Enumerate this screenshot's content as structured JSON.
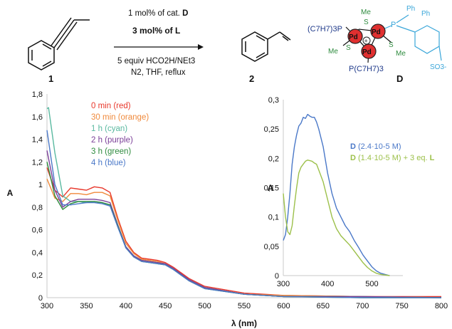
{
  "scheme": {
    "reagent_line1_pre": "1 mol% of cat. ",
    "reagent_line1_bold": "D",
    "reagent_line2": "3 mol% of L",
    "reagent_line3": "5 equiv HCO2H/NEt3",
    "reagent_line4": "N2, THF, reflux",
    "reactant_label": "1",
    "product_label": "2",
    "catalyst_label": "D",
    "catalyst_text": {
      "pr3_left": "(C7H7)3P",
      "pr3_bottom": "P(C7H7)3",
      "me_top": "Me",
      "s_top": "S",
      "s_left": "S",
      "s_right": "S",
      "me_left": "Me",
      "me_right": "Me",
      "pd": "Pd",
      "charge": "+",
      "p_ligand": "P",
      "ph1": "Ph",
      "ph2": "Ph",
      "so3": "SO3-"
    }
  },
  "colors": {
    "red": "#e8372b",
    "orange": "#f08a3c",
    "cyan": "#5ab9a0",
    "purple": "#7b3f98",
    "green": "#2e8b3e",
    "blue": "#4a78c8",
    "inset_green": "#9cc04a",
    "axis": "#c9c9c9",
    "catalyst_blue": "#1f3a8a",
    "ligand_cyan": "#3aa6d9",
    "sphere_red": "#e03030",
    "sphere_dark": "#222222"
  },
  "chart_data": [
    {
      "type": "line",
      "xlabel": "λ (nm)",
      "ylabel": "A",
      "xlim": [
        300,
        800
      ],
      "ylim": [
        0,
        1.8
      ],
      "xticks": [
        "300",
        "350",
        "400",
        "450",
        "500",
        "550",
        "600",
        "650",
        "700",
        "750",
        "800"
      ],
      "yticks": [
        "0",
        "0,2",
        "0,4",
        "0,6",
        "0,8",
        "1",
        "1,2",
        "1,4",
        "1,6",
        "1,8"
      ],
      "grid": false,
      "legend_position": "upper-left",
      "series": [
        {
          "name": "0 min (red)",
          "color": "red",
          "x": [
            300,
            310,
            320,
            330,
            340,
            350,
            360,
            370,
            380,
            390,
            400,
            410,
            420,
            430,
            440,
            450,
            460,
            480,
            500,
            550,
            600,
            700,
            800
          ],
          "y": [
            1.15,
            0.95,
            0.89,
            0.97,
            0.96,
            0.95,
            0.98,
            0.97,
            0.93,
            0.7,
            0.5,
            0.4,
            0.35,
            0.34,
            0.33,
            0.31,
            0.27,
            0.17,
            0.1,
            0.04,
            0.02,
            0.01,
            0.01
          ]
        },
        {
          "name": "30 min (orange)",
          "color": "orange",
          "x": [
            300,
            310,
            320,
            330,
            340,
            350,
            360,
            370,
            380,
            390,
            400,
            410,
            420,
            430,
            440,
            450,
            460,
            480,
            500,
            550,
            600,
            700,
            800
          ],
          "y": [
            1.05,
            0.88,
            0.85,
            0.92,
            0.92,
            0.91,
            0.93,
            0.93,
            0.9,
            0.68,
            0.48,
            0.39,
            0.34,
            0.33,
            0.32,
            0.3,
            0.26,
            0.16,
            0.09,
            0.03,
            0.02,
            0.01,
            0.0
          ]
        },
        {
          "name": "1 h (cyan)",
          "color": "cyan",
          "x": [
            300,
            302,
            310,
            320,
            330,
            340,
            350,
            360,
            370,
            380,
            390,
            400,
            410,
            420,
            430,
            440,
            450,
            460,
            480,
            500,
            550,
            600,
            700,
            800
          ],
          "y": [
            1.67,
            1.68,
            1.28,
            0.9,
            0.85,
            0.85,
            0.84,
            0.85,
            0.84,
            0.82,
            0.63,
            0.45,
            0.37,
            0.33,
            0.32,
            0.31,
            0.29,
            0.25,
            0.16,
            0.09,
            0.03,
            0.01,
            0.01,
            0.0
          ]
        },
        {
          "name": "2 h (purple)",
          "color": "purple",
          "x": [
            300,
            310,
            320,
            330,
            340,
            350,
            360,
            370,
            380,
            390,
            400,
            410,
            420,
            430,
            440,
            450,
            460,
            480,
            500,
            550,
            600,
            700,
            800
          ],
          "y": [
            1.3,
            0.95,
            0.8,
            0.85,
            0.87,
            0.87,
            0.87,
            0.86,
            0.84,
            0.64,
            0.45,
            0.37,
            0.33,
            0.32,
            0.31,
            0.3,
            0.26,
            0.16,
            0.09,
            0.03,
            0.01,
            0.01,
            0.0
          ]
        },
        {
          "name": "3 h (green)",
          "color": "green",
          "x": [
            300,
            310,
            320,
            330,
            340,
            350,
            360,
            370,
            380,
            390,
            400,
            410,
            420,
            430,
            440,
            450,
            460,
            480,
            500,
            550,
            600,
            700,
            800
          ],
          "y": [
            1.2,
            0.9,
            0.78,
            0.83,
            0.85,
            0.85,
            0.85,
            0.84,
            0.82,
            0.63,
            0.44,
            0.36,
            0.32,
            0.31,
            0.3,
            0.29,
            0.25,
            0.15,
            0.08,
            0.03,
            0.01,
            0.0,
            0.0
          ]
        },
        {
          "name": "4 h (blue)",
          "color": "blue",
          "x": [
            300,
            310,
            320,
            330,
            340,
            350,
            360,
            370,
            380,
            390,
            400,
            410,
            420,
            430,
            440,
            450,
            460,
            480,
            500,
            550,
            600,
            700,
            800
          ],
          "y": [
            1.48,
            1.0,
            0.82,
            0.82,
            0.83,
            0.84,
            0.84,
            0.83,
            0.81,
            0.62,
            0.44,
            0.36,
            0.32,
            0.31,
            0.3,
            0.29,
            0.25,
            0.15,
            0.08,
            0.03,
            0.01,
            0.0,
            0.0
          ]
        }
      ]
    },
    {
      "type": "line",
      "xlabel": "",
      "ylabel": "A",
      "xlim": [
        300,
        570
      ],
      "ylim": [
        0,
        0.3
      ],
      "xticks": [
        "300",
        "400",
        "500"
      ],
      "yticks": [
        "0",
        "0,05",
        "0,1",
        "0,15",
        "0,2",
        "0,25",
        "0,3"
      ],
      "grid": false,
      "legend_position": "upper-right",
      "series": [
        {
          "name": "D (2.4·10-5 M)",
          "color": "blue",
          "x": [
            300,
            305,
            310,
            315,
            320,
            325,
            330,
            335,
            340,
            345,
            350,
            355,
            360,
            365,
            370,
            375,
            380,
            390,
            400,
            410,
            420,
            430,
            440,
            450,
            460,
            470,
            480,
            490,
            500,
            510,
            520,
            530,
            540
          ],
          "y": [
            0.06,
            0.07,
            0.1,
            0.14,
            0.19,
            0.22,
            0.24,
            0.255,
            0.26,
            0.27,
            0.268,
            0.275,
            0.272,
            0.27,
            0.27,
            0.262,
            0.25,
            0.22,
            0.175,
            0.14,
            0.115,
            0.1,
            0.085,
            0.075,
            0.06,
            0.048,
            0.035,
            0.025,
            0.015,
            0.008,
            0.004,
            0.002,
            0.0
          ]
        },
        {
          "name": "D (1.4·10-5 M) + 3 eq. L",
          "color": "inset_green",
          "x": [
            300,
            305,
            310,
            315,
            320,
            325,
            330,
            335,
            340,
            345,
            350,
            355,
            360,
            365,
            370,
            375,
            380,
            390,
            400,
            410,
            420,
            430,
            440,
            450,
            460,
            470,
            480,
            490,
            500,
            510,
            520,
            530,
            540
          ],
          "y": [
            0.14,
            0.1,
            0.075,
            0.07,
            0.085,
            0.12,
            0.15,
            0.175,
            0.185,
            0.19,
            0.195,
            0.197,
            0.196,
            0.195,
            0.192,
            0.19,
            0.18,
            0.16,
            0.13,
            0.1,
            0.08,
            0.068,
            0.06,
            0.052,
            0.042,
            0.032,
            0.022,
            0.014,
            0.008,
            0.004,
            0.002,
            0.001,
            0.0
          ]
        }
      ]
    }
  ],
  "legend_main": [
    "0 min (red)",
    "30 min (orange)",
    "1 h (cyan)",
    "2 h (purple)",
    "3 h (green)",
    "4 h (blue)"
  ],
  "legend_inset": {
    "line1_bold": "D",
    "line1_rest": " (2.4·10-5 M)",
    "line2_bold1": "D",
    "line2_mid": " (1.4·10-5 M) + 3 eq. ",
    "line2_bold2": "L"
  }
}
